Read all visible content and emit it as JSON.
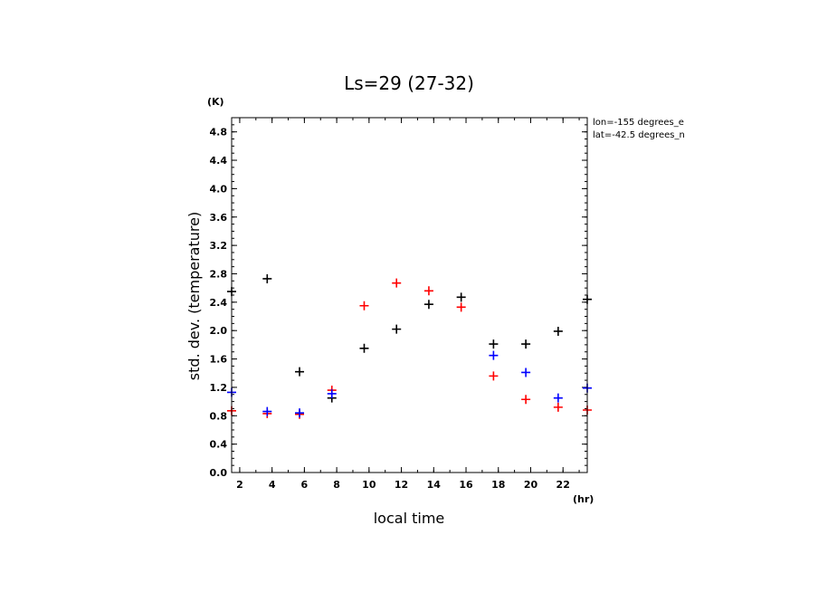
{
  "chart_data": {
    "type": "scatter",
    "title": "Ls=29 (27-32)",
    "xlabel": "local time",
    "ylabel": "std. dev. (temperature)",
    "x_unit": "(hr)",
    "y_unit": "(K)",
    "xlim": [
      1.5,
      23.5
    ],
    "ylim": [
      0.0,
      5.0
    ],
    "x_ticks": [
      2,
      4,
      6,
      8,
      10,
      12,
      14,
      16,
      18,
      20,
      22
    ],
    "y_ticks": [
      0.0,
      0.4,
      0.8,
      1.2,
      1.6,
      2.0,
      2.4,
      2.8,
      3.2,
      3.6,
      4.0,
      4.4,
      4.8
    ],
    "annotations": [
      "lon=-155 degrees_e",
      "lat=-42.5 degrees_n"
    ],
    "marker": "+",
    "series": [
      {
        "color": "#000000",
        "points": [
          {
            "x": 1.5,
            "y": 2.55
          },
          {
            "x": 3.7,
            "y": 2.73
          },
          {
            "x": 5.7,
            "y": 1.42
          },
          {
            "x": 7.7,
            "y": 1.05
          },
          {
            "x": 9.7,
            "y": 1.75
          },
          {
            "x": 11.7,
            "y": 2.02
          },
          {
            "x": 13.7,
            "y": 2.37
          },
          {
            "x": 15.7,
            "y": 2.47
          },
          {
            "x": 17.7,
            "y": 1.81
          },
          {
            "x": 19.7,
            "y": 1.81
          },
          {
            "x": 21.7,
            "y": 1.99
          },
          {
            "x": 23.5,
            "y": 2.44
          }
        ]
      },
      {
        "color": "#ff0000",
        "points": [
          {
            "x": 1.5,
            "y": 0.87
          },
          {
            "x": 3.7,
            "y": 0.83
          },
          {
            "x": 5.7,
            "y": 0.82
          },
          {
            "x": 7.7,
            "y": 1.16
          },
          {
            "x": 9.7,
            "y": 2.35
          },
          {
            "x": 11.7,
            "y": 2.67
          },
          {
            "x": 13.7,
            "y": 2.56
          },
          {
            "x": 15.7,
            "y": 2.33
          },
          {
            "x": 17.7,
            "y": 1.36
          },
          {
            "x": 19.7,
            "y": 1.03
          },
          {
            "x": 21.7,
            "y": 0.92
          },
          {
            "x": 23.5,
            "y": 0.88
          }
        ]
      },
      {
        "color": "#0000ff",
        "points": [
          {
            "x": 1.5,
            "y": 1.13
          },
          {
            "x": 3.7,
            "y": 0.86
          },
          {
            "x": 5.7,
            "y": 0.84
          },
          {
            "x": 7.7,
            "y": 1.11
          },
          {
            "x": 17.7,
            "y": 1.65
          },
          {
            "x": 19.7,
            "y": 1.41
          },
          {
            "x": 21.7,
            "y": 1.05
          },
          {
            "x": 23.5,
            "y": 1.19
          }
        ]
      }
    ]
  }
}
